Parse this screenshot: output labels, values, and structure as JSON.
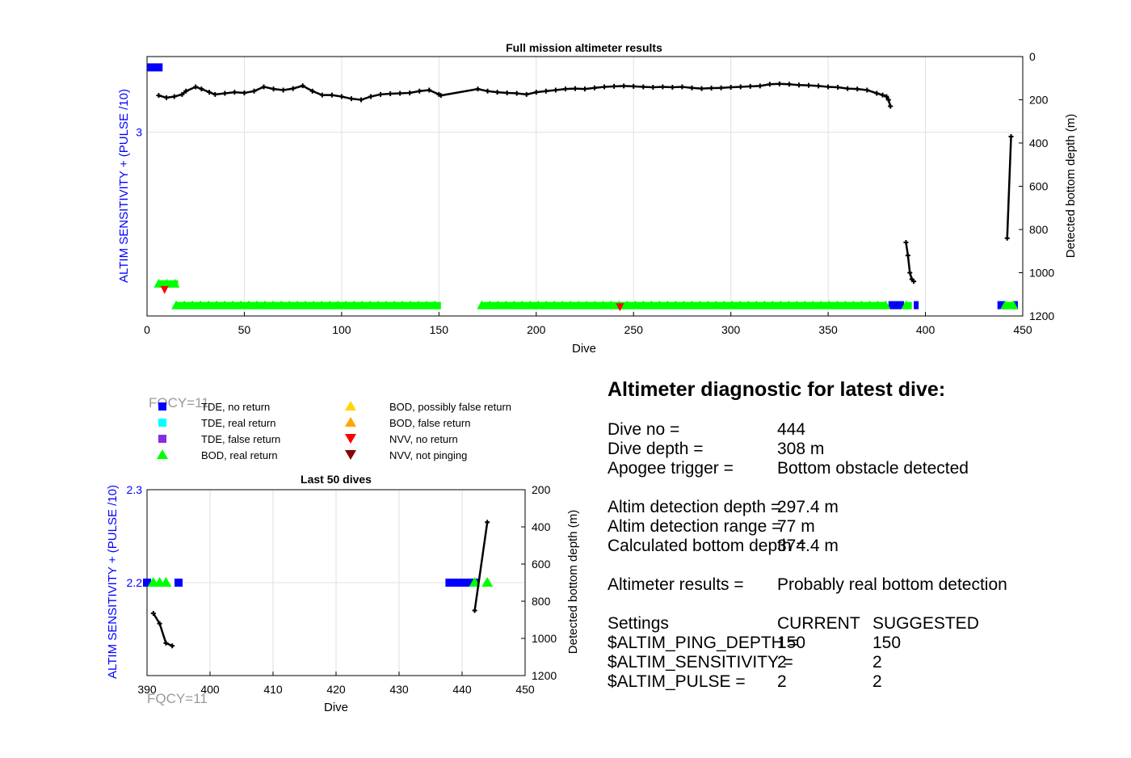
{
  "chart_data": [
    {
      "type": "scatter",
      "title": "Full mission altimeter results",
      "xlabel": "Dive",
      "ylabel_left": "ALTIM SENSITIVITY + (PULSE /10)",
      "ylabel_right": "Detected bottom depth (m)",
      "xlim": [
        0,
        450
      ],
      "ylim_right": [
        0,
        1200
      ],
      "right_axis_reversed": true,
      "xticks": [
        "0",
        "50",
        "100",
        "150",
        "200",
        "250",
        "300",
        "350",
        "400",
        "450"
      ],
      "yticks_left": [
        "3"
      ],
      "yticks_right": [
        "0",
        "200",
        "400",
        "600",
        "800",
        "1000",
        "1200"
      ],
      "grid": true,
      "series": [
        {
          "name": "TDE, no return",
          "type": "segments",
          "y_left": [
            2.2,
            2.2,
            2.2,
            2.2,
            3.3
          ],
          "segments": [
            [
              381,
              389
            ],
            [
              394,
              396
            ],
            [
              437,
              441
            ],
            [
              445,
              446
            ],
            [
              0,
              8
            ]
          ]
        },
        {
          "name": "BOD, real return",
          "type": "segments",
          "y_left": [
            2.2,
            2.2,
            2.2,
            2.2,
            2.3
          ],
          "segments": [
            [
              15,
              151
            ],
            [
              172,
              380
            ],
            [
              390,
              393
            ],
            [
              441,
              446
            ],
            [
              6,
              16
            ]
          ]
        },
        {
          "name": "NVV, no return",
          "type": "points",
          "x": [
            9,
            243
          ],
          "y_left": [
            2.27,
            2.19
          ]
        },
        {
          "name": "Detected bottom depth (m)",
          "type": "line",
          "axis": "right",
          "x": [
            6,
            10,
            14,
            18,
            20,
            25,
            28,
            32,
            35,
            40,
            45,
            50,
            55,
            60,
            65,
            70,
            75,
            80,
            85,
            90,
            95,
            100,
            105,
            110,
            115,
            120,
            125,
            130,
            135,
            140,
            145,
            150,
            151,
            170,
            175,
            180,
            185,
            190,
            195,
            200,
            205,
            210,
            215,
            220,
            225,
            230,
            235,
            240,
            245,
            250,
            255,
            260,
            265,
            270,
            275,
            280,
            285,
            290,
            295,
            300,
            305,
            310,
            315,
            320,
            325,
            330,
            335,
            340,
            345,
            350,
            355,
            360,
            365,
            370,
            375,
            378,
            380,
            381,
            382
          ],
          "y": [
            180,
            190,
            185,
            175,
            160,
            140,
            150,
            165,
            175,
            170,
            165,
            168,
            160,
            140,
            150,
            155,
            148,
            135,
            160,
            178,
            178,
            185,
            195,
            200,
            185,
            175,
            172,
            170,
            168,
            160,
            155,
            175,
            180,
            150,
            160,
            165,
            168,
            170,
            175,
            165,
            160,
            155,
            150,
            148,
            150,
            145,
            140,
            138,
            136,
            138,
            140,
            142,
            140,
            142,
            140,
            145,
            148,
            146,
            145,
            142,
            140,
            138,
            136,
            128,
            126,
            128,
            132,
            133,
            136,
            140,
            142,
            148,
            150,
            155,
            170,
            178,
            185,
            200,
            230
          ]
        },
        {
          "name": "Detected bottom depth (m)",
          "type": "line",
          "axis": "right",
          "x": [
            390,
            391,
            392,
            393,
            394
          ],
          "y": [
            860,
            920,
            1000,
            1030,
            1040
          ]
        },
        {
          "name": "Detected bottom depth (m)",
          "type": "line",
          "axis": "right",
          "x": [
            442,
            444
          ],
          "y": [
            840,
            370
          ]
        }
      ]
    },
    {
      "type": "scatter",
      "title": "Last 50 dives",
      "xlabel": "Dive",
      "ylabel_left": "ALTIM SENSITIVITY + (PULSE /10)",
      "ylabel_right": "Detected bottom depth (m)",
      "xlim": [
        390,
        450
      ],
      "ylim_left": [
        2.1,
        2.3
      ],
      "ylim_right": [
        200,
        1200
      ],
      "right_axis_reversed": true,
      "xticks": [
        "390",
        "400",
        "410",
        "420",
        "430",
        "440",
        "450"
      ],
      "yticks_left": [
        "2.3",
        "2.2"
      ],
      "yticks_right": [
        "200",
        "400",
        "600",
        "800",
        "1000",
        "1200"
      ],
      "grid": true,
      "series": [
        {
          "name": "TDE, no return",
          "type": "points",
          "x": [
            390,
            395,
            438,
            439,
            440,
            441,
            442
          ],
          "y_left": [
            2.2,
            2.2,
            2.2,
            2.2,
            2.2,
            2.2,
            2.2
          ]
        },
        {
          "name": "BOD, real return",
          "type": "points",
          "x": [
            391,
            392,
            393,
            442,
            444
          ],
          "y_left": [
            2.2,
            2.2,
            2.2,
            2.2,
            2.2
          ]
        },
        {
          "name": "Detected bottom depth (m)",
          "type": "line",
          "axis": "right",
          "x": [
            391,
            392,
            393,
            394
          ],
          "y": [
            865,
            920,
            1025,
            1040
          ]
        },
        {
          "name": "Detected bottom depth (m)",
          "type": "line",
          "axis": "right",
          "x": [
            442,
            444
          ],
          "y": [
            850,
            375
          ]
        }
      ]
    }
  ],
  "legend": {
    "entries": [
      {
        "label": "TDE, no return",
        "marker": "square",
        "color": "#0000ff"
      },
      {
        "label": "TDE, real return",
        "marker": "square",
        "color": "#00ffff"
      },
      {
        "label": "TDE, false return",
        "marker": "square",
        "color": "#8a2be2"
      },
      {
        "label": "BOD, real return",
        "marker": "triangle-up",
        "color": "#00ff00"
      },
      {
        "label": "BOD, possibly false return",
        "marker": "triangle-up",
        "color": "#ffd700"
      },
      {
        "label": "BOD, false return",
        "marker": "triangle-up",
        "color": "#ffa500"
      },
      {
        "label": "NVV, no return",
        "marker": "triangle-down",
        "color": "#ff0000"
      },
      {
        "label": "NVV, not pinging",
        "marker": "triangle-down",
        "color": "#8b0000"
      }
    ]
  },
  "fqcy_label": "FQCY=11",
  "diagnostic": {
    "title": "Altimeter diagnostic for latest dive:",
    "dive_no_label": "Dive no =",
    "dive_no": "444",
    "dive_depth_label": "Dive depth =",
    "dive_depth": "308 m",
    "apogee_label": "Apogee trigger =",
    "apogee": "Bottom obstacle detected",
    "detect_depth_label": "Altim detection depth =",
    "detect_depth": "297.4 m",
    "detect_range_label": "Altim detection range =",
    "detect_range": "77 m",
    "calc_depth_label": "Calculated bottom depth =",
    "calc_depth": "374.4 m",
    "results_label": "Altimeter results =",
    "results": "Probably real bottom detection",
    "settings_label": "Settings",
    "current_label": "CURRENT",
    "suggested_label": "SUGGESTED",
    "ping_label": "$ALTIM_PING_DEPTH =",
    "ping_current": "150",
    "ping_suggested": "150",
    "sens_label": "$ALTIM_SENSITIVITY =",
    "sens_current": "2",
    "sens_suggested": "2",
    "pulse_label": "$ALTIM_PULSE =",
    "pulse_current": "2",
    "pulse_suggested": "2"
  },
  "colors": {
    "left_axis": "#0000ff",
    "grid": "#dfdfdf",
    "depth_line": "#000000"
  }
}
